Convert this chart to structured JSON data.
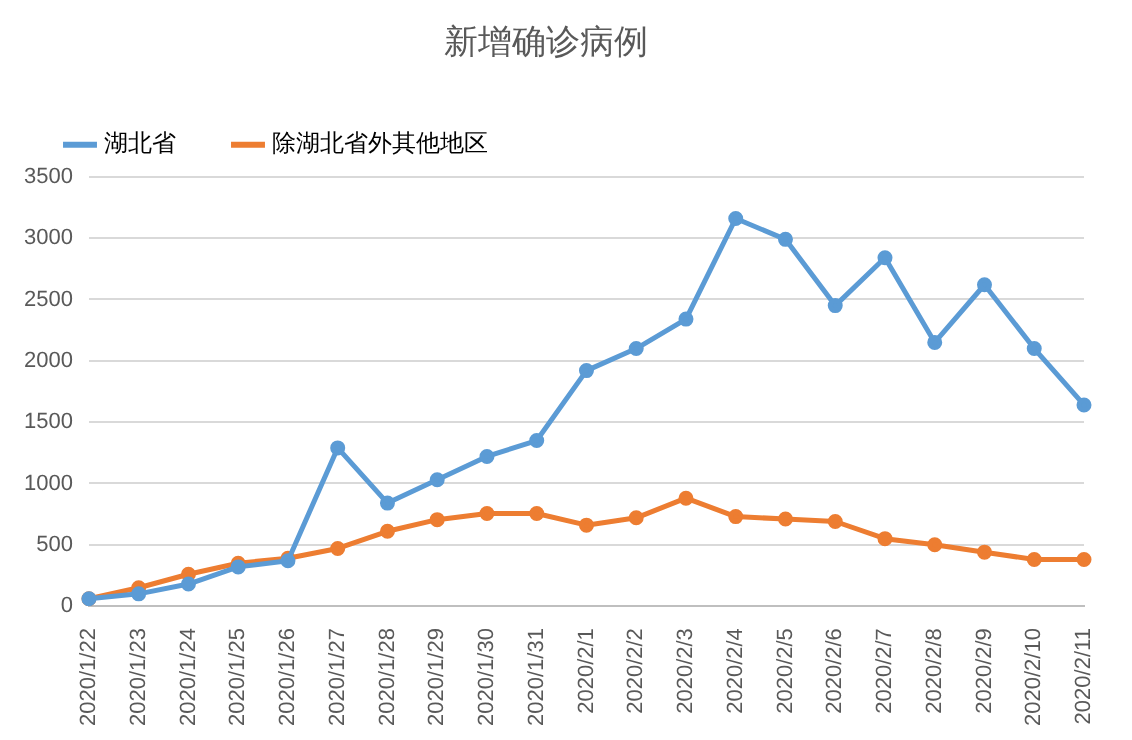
{
  "chart_data": {
    "type": "line",
    "title": "新增确诊病例",
    "categories": [
      "2020/1/22",
      "2020/1/23",
      "2020/1/24",
      "2020/1/25",
      "2020/1/26",
      "2020/1/27",
      "2020/1/28",
      "2020/1/29",
      "2020/1/30",
      "2020/1/31",
      "2020/2/1",
      "2020/2/2",
      "2020/2/3",
      "2020/2/4",
      "2020/2/5",
      "2020/2/6",
      "2020/2/7",
      "2020/2/8",
      "2020/2/9",
      "2020/2/10",
      "2020/2/11"
    ],
    "series": [
      {
        "name": "湖北省",
        "color": "#5b9bd5",
        "values": [
          60,
          100,
          180,
          320,
          370,
          1290,
          840,
          1030,
          1220,
          1350,
          1920,
          2100,
          2340,
          3160,
          2990,
          2450,
          2840,
          2150,
          2620,
          2100,
          1640
        ]
      },
      {
        "name": "除湖北省外其他地区",
        "color": "#ed7d31",
        "values": [
          60,
          150,
          260,
          350,
          390,
          470,
          610,
          705,
          755,
          755,
          660,
          720,
          880,
          730,
          710,
          690,
          550,
          500,
          440,
          380,
          380
        ]
      }
    ],
    "ylim": [
      0,
      3500
    ],
    "yticks": [
      0,
      500,
      1000,
      1500,
      2000,
      2500,
      3000,
      3500
    ],
    "grid": "y",
    "legend": "top left",
    "marker": "circle",
    "line_style": "solid"
  }
}
